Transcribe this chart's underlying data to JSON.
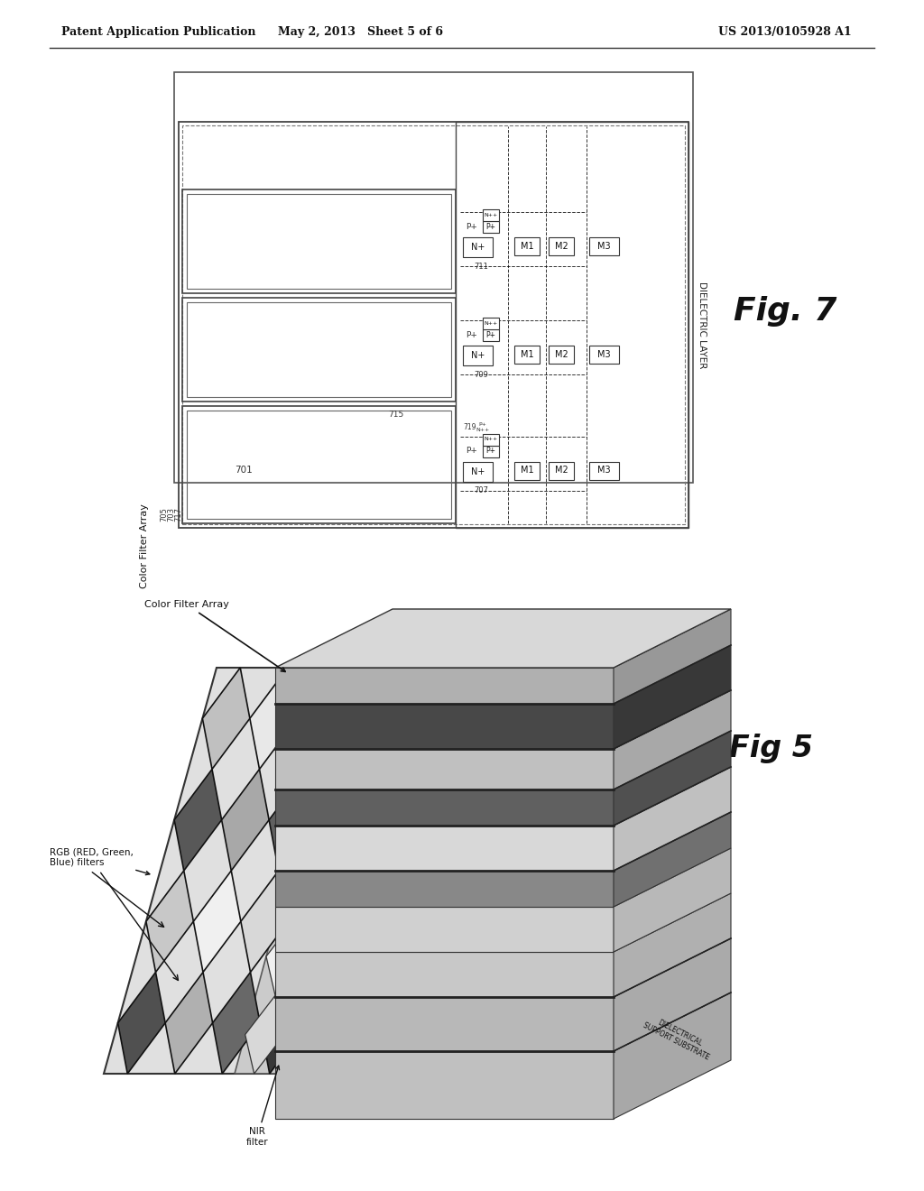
{
  "page_bg": "#ffffff",
  "header_left": "Patent Application Publication",
  "header_center": "May 2, 2013   Sheet 5 of 6",
  "header_right": "US 2013/0105928 A1",
  "fig7_title": "Fig. 7",
  "fig5_title": "Fig 5",
  "fig7_label_dielectric": "DIELECTRIC LAYER",
  "fig5_label_cfa": "Color Filter Array",
  "fig5_label_rgb": "RGB (RED, Green,\nBlue) filters",
  "fig5_label_nir": "NIR\nfilter",
  "fig5_label_substrate": "DIELECTRICAL\nSUPPORT SUBSTRATE"
}
